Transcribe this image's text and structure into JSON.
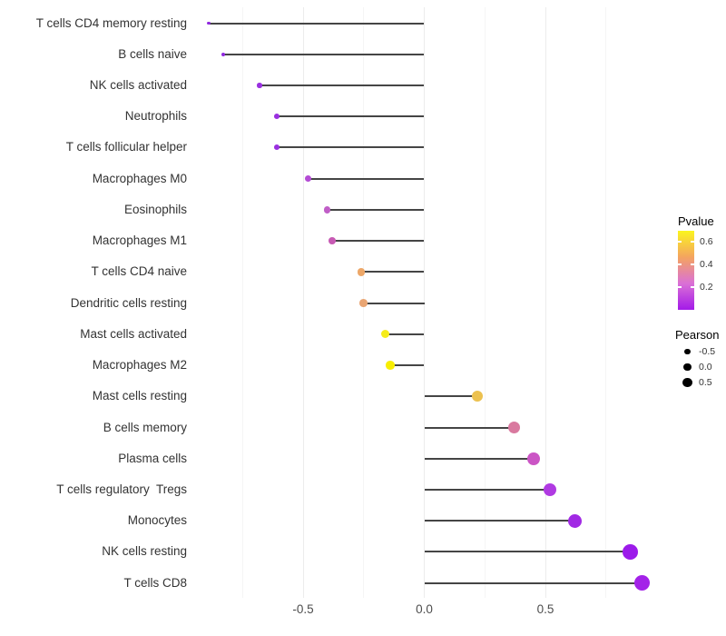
{
  "chart_data": {
    "type": "lollipop",
    "orientation": "horizontal",
    "title": "",
    "xlabel": "",
    "ylabel": "",
    "grid": "vertical-major-and-minor-only",
    "x_axis": {
      "ticks": [
        "-0.5",
        "0.0",
        "0.5"
      ],
      "tick_values": [
        -0.5,
        0.0,
        0.5
      ],
      "minor_gridline_values": [
        -0.75,
        -0.25,
        0.25,
        0.75
      ],
      "range": [
        -0.95,
        1.0
      ]
    },
    "categories": [
      "T cells CD4 memory resting",
      "B cells naive",
      "NK cells activated",
      "Neutrophils",
      "T cells follicular helper",
      "Macrophages M0",
      "Eosinophils",
      "Macrophages M1",
      "T cells CD4 naive",
      "Dendritic cells resting",
      "Mast cells activated",
      "Macrophages M2",
      "Mast cells resting",
      "B cells memory",
      "Plasma cells",
      "T cells regulatory  Tregs",
      "Monocytes",
      "NK cells resting",
      "T cells CD8"
    ],
    "series": [
      {
        "name": "Pearson",
        "values": [
          -0.89,
          -0.83,
          -0.68,
          -0.61,
          -0.61,
          -0.48,
          -0.4,
          -0.38,
          -0.26,
          -0.25,
          -0.16,
          -0.14,
          0.22,
          0.37,
          0.45,
          0.52,
          0.62,
          0.85,
          0.9
        ]
      },
      {
        "name": "Pvalue_est_from_color",
        "values": [
          0.04,
          0.04,
          0.05,
          0.06,
          0.06,
          0.1,
          0.15,
          0.26,
          0.45,
          0.44,
          0.63,
          0.66,
          0.55,
          0.31,
          0.22,
          0.12,
          0.07,
          0.02,
          0.02
        ]
      }
    ],
    "point_colors": [
      "#8f28df",
      "#8f28df",
      "#9a30e0",
      "#9a30e0",
      "#9a30e0",
      "#b44cd5",
      "#c05ec7",
      "#c75ab4",
      "#eda768",
      "#e9a573",
      "#f5ec1a",
      "#f8ee00",
      "#ecc14f",
      "#d9799f",
      "#cb55c5",
      "#b03ae2",
      "#a129e4",
      "#9c1bea",
      "#a322e8"
    ],
    "stem_color": "#454545",
    "legend_pvalue": {
      "title": "Pvalue",
      "ticks": [
        {
          "label": "0.6",
          "value": 0.6
        },
        {
          "label": "0.4",
          "value": 0.4
        },
        {
          "label": "0.2",
          "value": 0.2
        }
      ],
      "scale_max": 0.7,
      "gradient_top_to_bottom": [
        "#fbf51f",
        "#f4a460",
        "#da70d6",
        "#a31ae8"
      ]
    },
    "legend_pearson": {
      "title": "Pearson",
      "keys": [
        {
          "label": "-0.5",
          "value": -0.5
        },
        {
          "label": "0.0",
          "value": 0.0
        },
        {
          "label": "0.5",
          "value": 0.5
        }
      ],
      "key_color": "#000000"
    }
  }
}
